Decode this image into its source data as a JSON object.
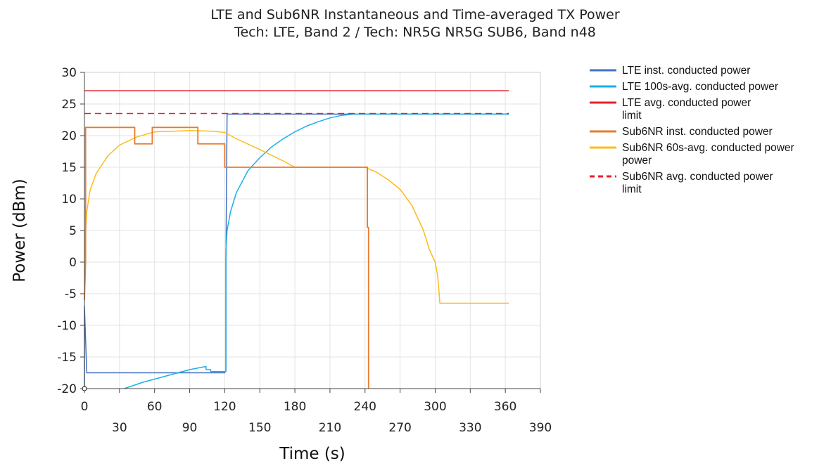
{
  "chart_data": {
    "type": "line",
    "title": "LTE and Sub6NR Instantaneous and Time-averaged TX Power",
    "subtitle": "Tech: LTE, Band 2 / Tech: NR5G NR5G SUB6, Band n48",
    "xlabel": "Time (s)",
    "ylabel": "Power (dBm)",
    "xlim": [
      0,
      390
    ],
    "ylim": [
      -20,
      30
    ],
    "x_ticks_row1": [
      0,
      60,
      120,
      180,
      240,
      300,
      360
    ],
    "x_ticks_row2": [
      30,
      90,
      150,
      210,
      270,
      330,
      390
    ],
    "y_ticks": [
      30,
      25,
      20,
      15,
      10,
      5,
      0,
      -5,
      -10,
      -15,
      -20
    ],
    "grid": true,
    "legend_position": "right",
    "series": [
      {
        "name": "LTE inst. conducted power",
        "legend_lines": [
          "LTE inst. conducted power"
        ],
        "color": "#4472c4",
        "dash": "solid",
        "x": [
          0,
          0,
          2,
          2,
          120,
          120,
          121,
          121,
          122,
          363
        ],
        "y": [
          -20,
          -7,
          -17.5,
          -17.5,
          -17.5,
          -17.3,
          -17.3,
          0,
          23.4,
          23.4
        ]
      },
      {
        "name": "LTE 100s-avg. conducted power",
        "legend_lines": [
          "LTE 100s-avg. conducted power"
        ],
        "color": "#1ab0e8",
        "dash": "solid",
        "x": [
          34,
          50,
          70,
          90,
          104,
          104,
          108,
          108,
          121,
          121,
          122,
          125,
          130,
          140,
          150,
          160,
          170,
          180,
          190,
          200,
          210,
          220,
          230,
          240,
          260,
          300,
          363
        ],
        "y": [
          -20,
          -19,
          -18,
          -17,
          -16.5,
          -17,
          -17,
          -17.3,
          -17.3,
          2,
          5,
          8,
          11,
          14.5,
          16.5,
          18.2,
          19.5,
          20.6,
          21.5,
          22.2,
          22.8,
          23.2,
          23.4,
          23.4,
          23.4,
          23.4,
          23.4
        ]
      },
      {
        "name": "LTE avg. conducted power limit",
        "legend_lines": [
          "LTE avg. conducted power",
          "limit"
        ],
        "color": "#e8202a",
        "dash": "solid",
        "x": [
          0,
          363
        ],
        "y": [
          27.1,
          27.1
        ]
      },
      {
        "name": "Sub6NR inst. conducted power",
        "legend_lines": [
          "Sub6NR inst. conducted power"
        ],
        "color": "#e87b2c",
        "dash": "solid",
        "x": [
          0,
          1,
          1,
          43,
          43,
          58,
          58,
          97,
          97,
          120,
          120,
          121,
          121,
          242,
          242,
          243,
          243
        ],
        "y": [
          -6,
          0,
          21.3,
          21.3,
          18.7,
          18.7,
          21.3,
          21.3,
          18.7,
          18.7,
          15,
          15,
          15,
          15,
          5.5,
          5.5,
          -20
        ]
      },
      {
        "name": "Sub6NR 60s-avg. conducted power",
        "legend_lines": [
          "Sub6NR 60s-avg. conducted power",
          "power"
        ],
        "color": "#fbbd1a",
        "dash": "solid",
        "x": [
          0,
          0.5,
          2,
          5,
          10,
          20,
          30,
          45,
          60,
          90,
          110,
          120,
          130,
          150,
          170,
          180,
          240,
          250,
          260,
          270,
          280,
          290,
          295,
          300,
          302,
          303,
          304,
          363
        ],
        "y": [
          -6,
          3.5,
          8,
          11.5,
          14,
          16.8,
          18.5,
          19.8,
          20.6,
          20.8,
          20.7,
          20.5,
          19.5,
          17.8,
          16,
          15,
          15,
          14.2,
          13,
          11.5,
          9,
          5,
          2,
          0,
          -2,
          -4,
          -6.5,
          -6.5
        ]
      },
      {
        "name": "Sub6NR avg. conducted power limit",
        "legend_lines": [
          "Sub6NR avg. conducted power",
          "limit"
        ],
        "color": "#e8202a",
        "dash": "dashed",
        "x": [
          0,
          363
        ],
        "y": [
          23.5,
          23.5
        ]
      }
    ]
  }
}
